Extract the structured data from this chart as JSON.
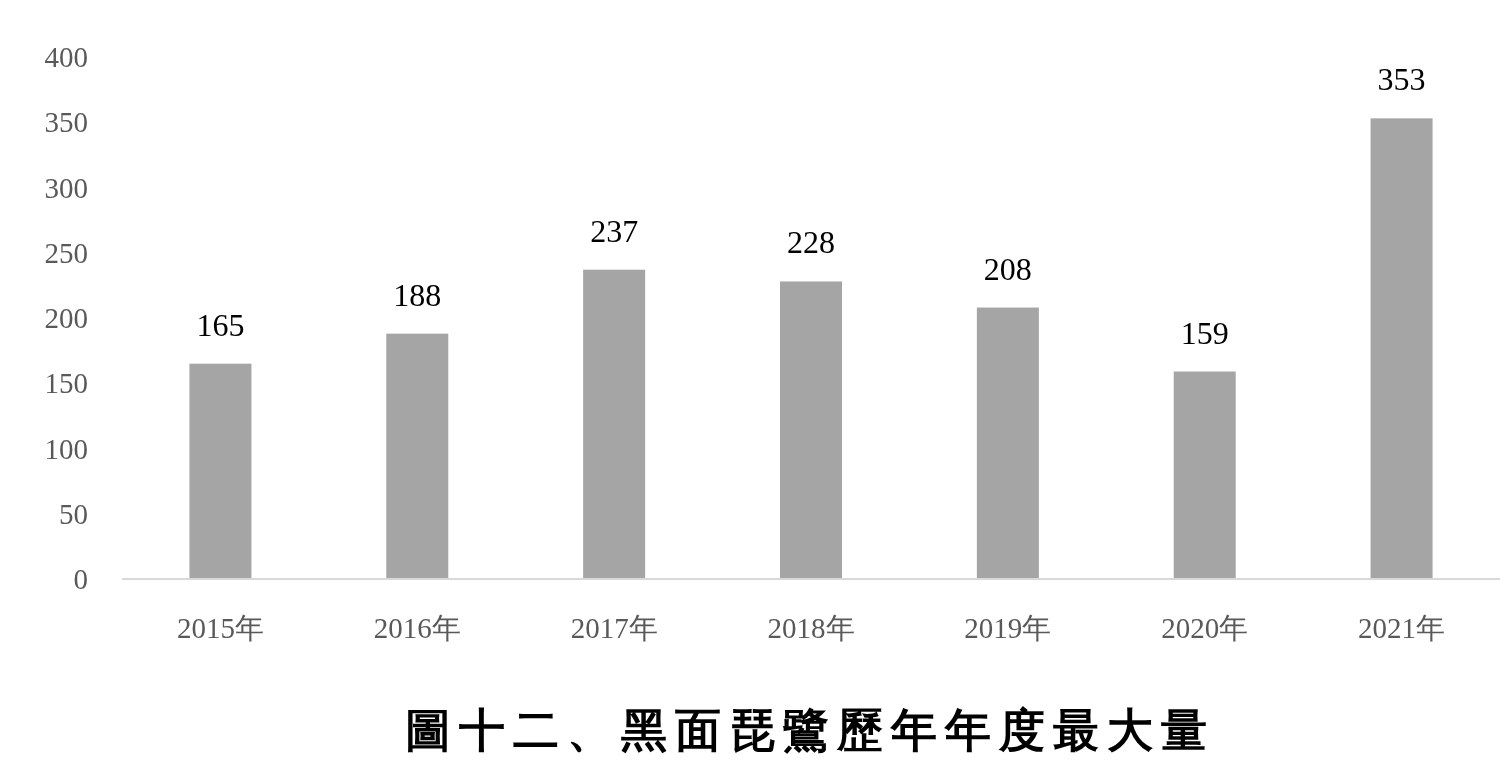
{
  "chart_data": {
    "type": "bar",
    "title": "圖十二、黑面琵鷺歷年年度最大量",
    "categories": [
      "2015年",
      "2016年",
      "2017年",
      "2018年",
      "2019年",
      "2020年",
      "2021年"
    ],
    "values": [
      165,
      188,
      237,
      228,
      208,
      159,
      353
    ],
    "color": "#a5a5a5",
    "ylim": [
      0,
      400
    ],
    "yticks": [
      0,
      50,
      100,
      150,
      200,
      250,
      300,
      350,
      400
    ],
    "data_labels": true
  }
}
